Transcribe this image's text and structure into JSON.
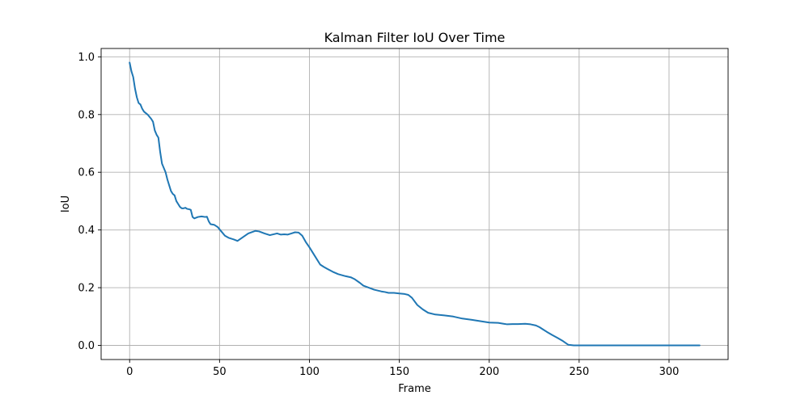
{
  "chart_data": {
    "type": "line",
    "title": "Kalman Filter IoU Over Time",
    "xlabel": "Frame",
    "ylabel": "IoU",
    "xlim": [
      -15.85,
      332.85
    ],
    "ylim": [
      -0.049,
      1.029
    ],
    "grid": true,
    "xticks": [
      0,
      50,
      100,
      150,
      200,
      250,
      300
    ],
    "yticks": [
      0.0,
      0.2,
      0.4,
      0.6,
      0.8,
      1.0
    ],
    "ytick_labels": [
      "0.0",
      "0.2",
      "0.4",
      "0.6",
      "0.8",
      "1.0"
    ],
    "series": [
      {
        "name": "IoU",
        "color": "#1f77b4",
        "x": [
          0,
          1,
          2,
          3,
          4,
          5,
          6,
          7,
          8,
          10,
          12,
          13,
          14,
          15,
          16,
          17,
          18,
          19,
          20,
          21,
          22,
          23,
          24,
          25,
          26,
          27,
          28,
          29,
          30,
          31,
          32,
          33,
          34,
          35,
          36,
          38,
          40,
          42,
          43,
          44,
          45,
          47,
          49,
          51,
          53,
          55,
          58,
          60,
          63,
          66,
          70,
          72,
          75,
          78,
          82,
          84,
          86,
          88,
          90,
          92,
          94,
          96,
          98,
          100,
          103,
          106,
          108,
          110,
          113,
          116,
          120,
          123,
          125,
          128,
          130,
          133,
          136,
          140,
          142,
          144,
          147,
          150,
          153,
          155,
          157,
          160,
          163,
          166,
          170,
          175,
          180,
          185,
          190,
          195,
          200,
          205,
          208,
          210,
          213,
          216,
          220,
          223,
          226,
          228,
          230,
          232,
          235,
          238,
          241,
          244,
          247,
          250,
          260,
          270,
          280,
          290,
          300,
          310,
          317
        ],
        "y": [
          0.98,
          0.95,
          0.93,
          0.89,
          0.86,
          0.84,
          0.835,
          0.82,
          0.81,
          0.8,
          0.785,
          0.775,
          0.745,
          0.73,
          0.72,
          0.67,
          0.63,
          0.615,
          0.6,
          0.575,
          0.555,
          0.535,
          0.525,
          0.52,
          0.5,
          0.49,
          0.48,
          0.475,
          0.475,
          0.477,
          0.473,
          0.472,
          0.47,
          0.445,
          0.44,
          0.445,
          0.447,
          0.445,
          0.446,
          0.43,
          0.42,
          0.418,
          0.41,
          0.395,
          0.38,
          0.373,
          0.367,
          0.362,
          0.375,
          0.388,
          0.397,
          0.395,
          0.388,
          0.382,
          0.388,
          0.384,
          0.385,
          0.384,
          0.388,
          0.392,
          0.391,
          0.38,
          0.358,
          0.34,
          0.31,
          0.28,
          0.272,
          0.265,
          0.255,
          0.247,
          0.24,
          0.236,
          0.23,
          0.217,
          0.207,
          0.2,
          0.193,
          0.187,
          0.185,
          0.182,
          0.182,
          0.18,
          0.178,
          0.175,
          0.165,
          0.14,
          0.125,
          0.113,
          0.107,
          0.104,
          0.1,
          0.093,
          0.089,
          0.084,
          0.079,
          0.078,
          0.075,
          0.073,
          0.074,
          0.074,
          0.075,
          0.073,
          0.069,
          0.063,
          0.055,
          0.047,
          0.036,
          0.026,
          0.015,
          0.002,
          0.0,
          0.0,
          0.0,
          0.0,
          0.0,
          0.0,
          0.0,
          0.0,
          0.0
        ]
      }
    ]
  }
}
